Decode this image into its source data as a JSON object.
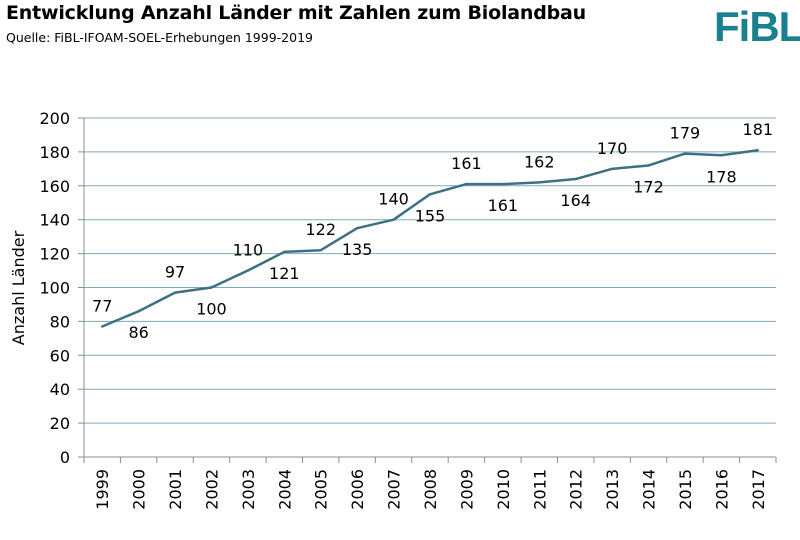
{
  "header": {
    "title": "Entwicklung Anzahl Länder mit Zahlen zum Biolandbau",
    "subtitle": "Quelle: FiBL-IFOAM-SOEL-Erhebungen 1999-2019",
    "logo_text": "FiBL",
    "logo_color": "#1a7f8e"
  },
  "chart_data": {
    "type": "line",
    "categories": [
      "1999",
      "2000",
      "2001",
      "2002",
      "2003",
      "2004",
      "2005",
      "2006",
      "2007",
      "2008",
      "2009",
      "2010",
      "2011",
      "2012",
      "2013",
      "2014",
      "2015",
      "2016",
      "2017"
    ],
    "series": [
      {
        "values": [
          77,
          86,
          97,
          100,
          110,
          121,
          122,
          135,
          140,
          155,
          161,
          161,
          162,
          164,
          170,
          172,
          179,
          178,
          181
        ]
      }
    ],
    "data_label_position": [
      "above",
      "below",
      "above",
      "below",
      "above",
      "below",
      "above",
      "below",
      "above",
      "below",
      "above",
      "below",
      "above",
      "below",
      "above",
      "below",
      "above",
      "below",
      "above"
    ],
    "title": "",
    "xlabel": "",
    "ylabel": "Anzahl Länder",
    "ylim": [
      0,
      200
    ],
    "yticks": [
      0,
      20,
      40,
      60,
      80,
      100,
      120,
      140,
      160,
      180,
      200
    ],
    "grid": true,
    "legend": "none",
    "line_color": "#3d7182",
    "grid_color": "#7fa9bf"
  }
}
